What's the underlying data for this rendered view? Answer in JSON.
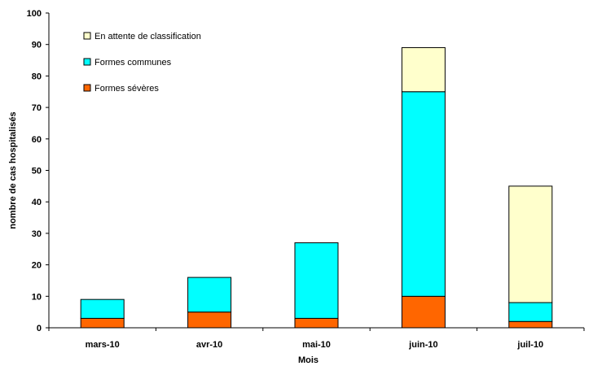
{
  "chart_data": {
    "type": "bar",
    "stacked": true,
    "categories": [
      "mars-10",
      "avr-10",
      "mai-10",
      "juin-10",
      "juil-10"
    ],
    "series": [
      {
        "name": "Formes sévères",
        "values": [
          3,
          5,
          3,
          10,
          2
        ],
        "color": "#ff6600"
      },
      {
        "name": "Formes communes",
        "values": [
          6,
          11,
          24,
          65,
          6
        ],
        "color": "#00ffff"
      },
      {
        "name": "En attente de classification",
        "values": [
          0,
          0,
          0,
          14,
          37
        ],
        "color": "#ffffcc"
      }
    ],
    "legend_order": [
      "En attente de classification",
      "Formes communes",
      "Formes sévères"
    ],
    "legend_position": "top-left",
    "xlabel": "Mois",
    "ylabel": "nombre de cas hospitalisés",
    "ylim": [
      0,
      100
    ],
    "yticks": [
      0,
      10,
      20,
      30,
      40,
      50,
      60,
      70,
      80,
      90,
      100
    ],
    "grid": false
  }
}
